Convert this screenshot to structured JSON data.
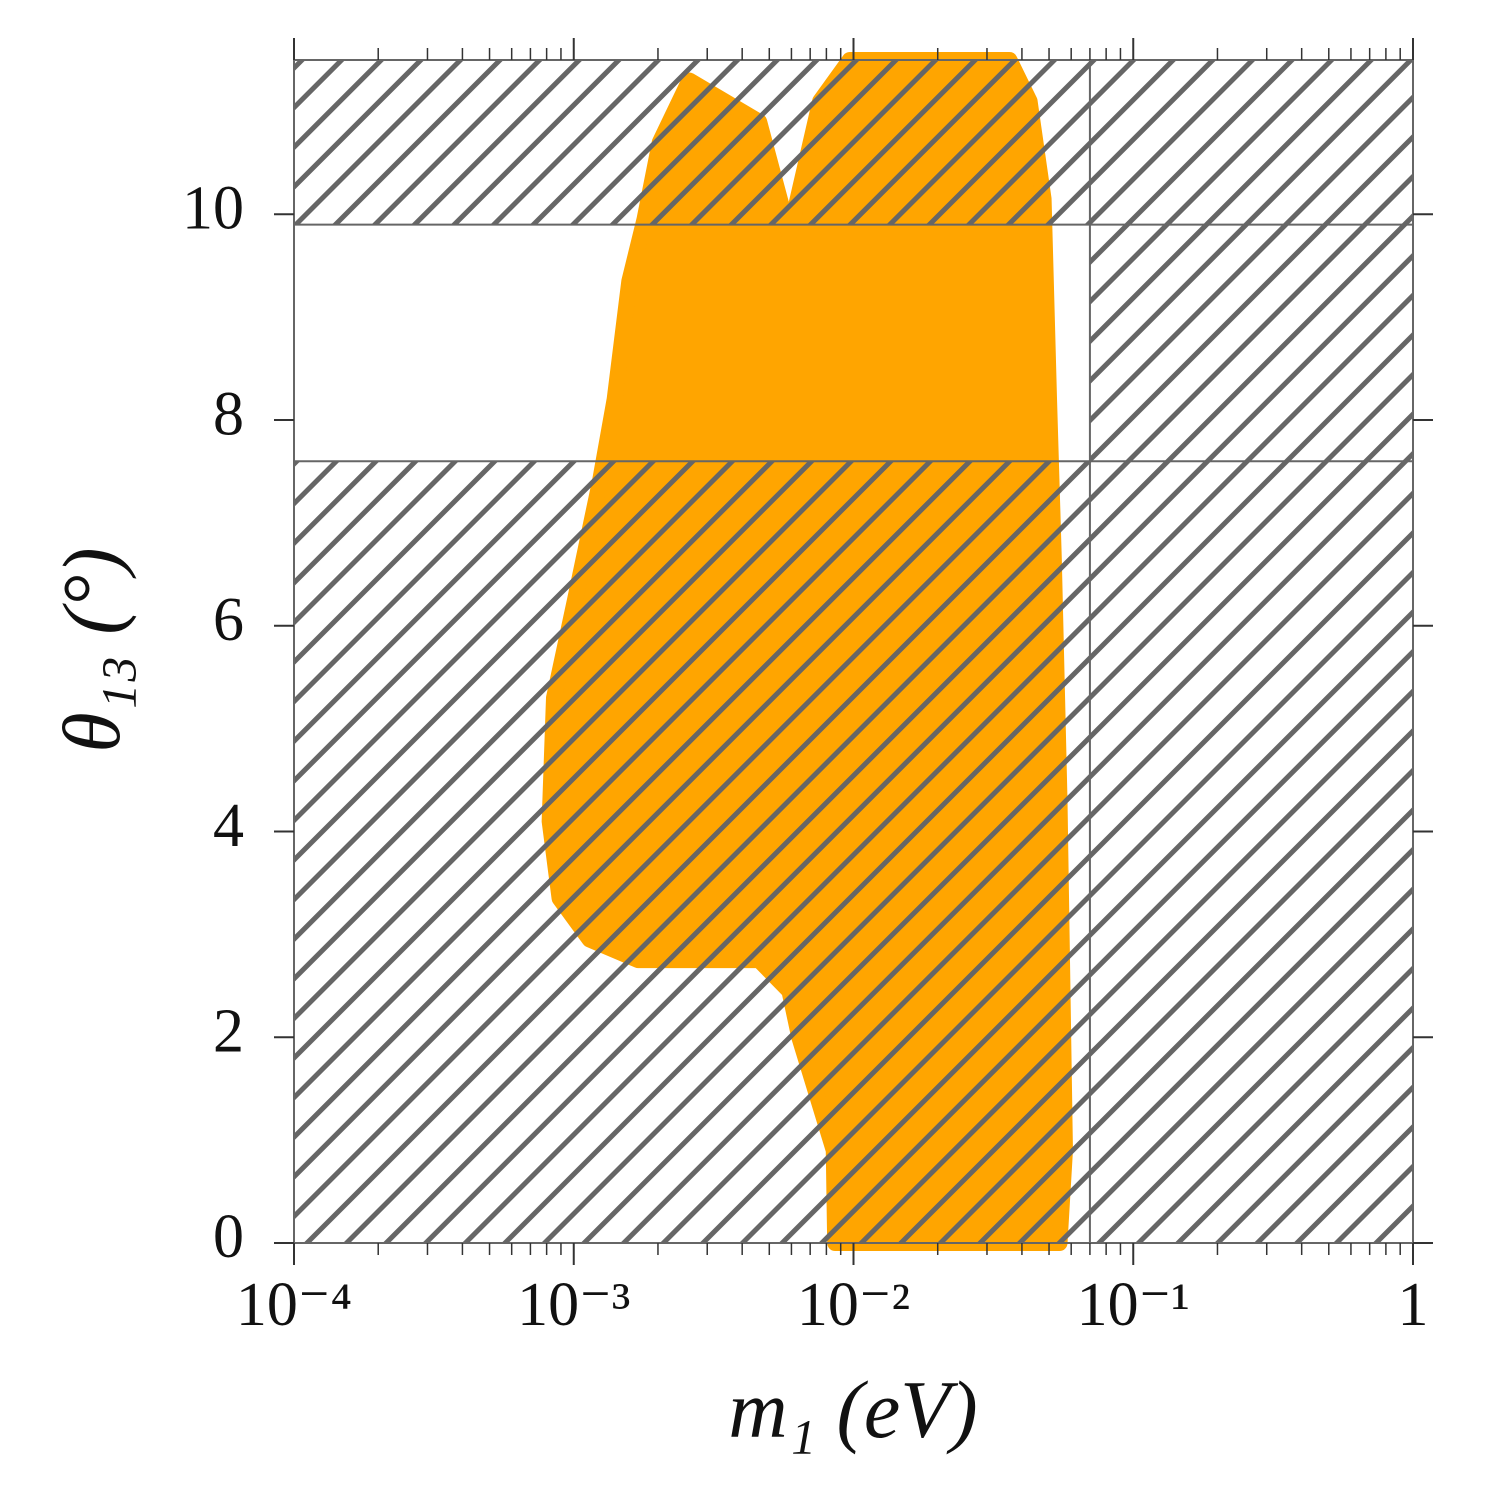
{
  "chart_data": {
    "type": "region",
    "x_label": "m₁ (eV)",
    "y_label": "θ₁₃ (°)",
    "xscale": "log",
    "xlim": [
      0.0001,
      1
    ],
    "ylim": [
      0,
      11.5
    ],
    "xticks": [
      {
        "value": 0.0001,
        "label": "10⁻⁴"
      },
      {
        "value": 0.001,
        "label": "10⁻³"
      },
      {
        "value": 0.01,
        "label": "10⁻²"
      },
      {
        "value": 0.1,
        "label": "10⁻¹"
      },
      1
    ],
    "xminorticks": [
      0.0002,
      0.0003,
      0.0004,
      0.0005,
      0.0006,
      0.0007,
      0.0008,
      0.0009,
      0.002,
      0.003,
      0.004,
      0.005,
      0.006,
      0.007,
      0.008,
      0.009,
      0.02,
      0.03,
      0.04,
      0.05,
      0.06,
      0.07,
      0.08,
      0.09,
      0.2,
      0.3,
      0.4,
      0.5,
      0.6,
      0.7,
      0.8,
      0.9
    ],
    "yticks": [
      0,
      2,
      4,
      6,
      8,
      10
    ],
    "allowed_region": {
      "ylim": [
        7.6,
        9.9
      ],
      "xmax": 0.07
    },
    "hatch_color": "#666666",
    "series": [
      {
        "color": "#ffa500",
        "x": [
          0.0086,
          0.0085,
          0.0064,
          0.0059,
          0.0046,
          0.0017,
          0.00114,
          0.00089,
          0.00082,
          0.00085,
          0.00101,
          0.00124,
          0.0014,
          0.00158,
          0.00179,
          0.00203,
          0.00259,
          0.0046,
          0.0059,
          0.0076,
          0.0097,
          0.0361,
          0.0426,
          0.0478,
          0.05,
          0.052,
          0.0545,
          0.057,
          0.0545
        ],
        "y": [
          0,
          0.9,
          2,
          2.45,
          2.75,
          2.75,
          2.95,
          3.35,
          4.1,
          5.3,
          6.25,
          7.4,
          8.2,
          9.35,
          9.95,
          10.7,
          11.3,
          10.9,
          9.8,
          11.1,
          11.5,
          11.5,
          11.1,
          10.15,
          8.2,
          6.65,
          4.3,
          0.9,
          0
        ]
      }
    ]
  }
}
